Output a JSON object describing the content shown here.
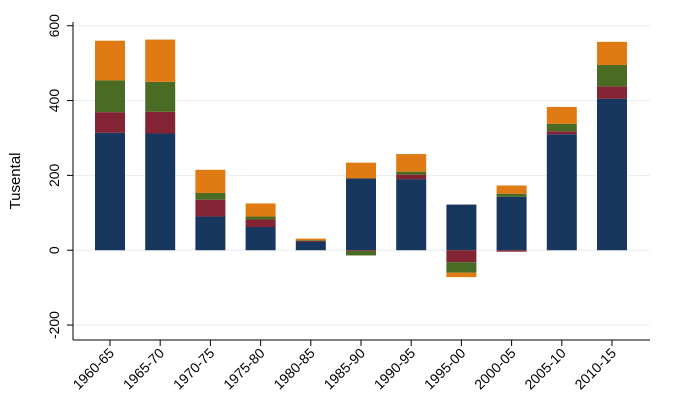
{
  "chart_data": {
    "type": "bar",
    "stacked": true,
    "title": "",
    "xlabel": "",
    "ylabel": "Tusental",
    "ylim": [
      -240,
      610
    ],
    "yticks": [
      -200,
      0,
      200,
      400,
      600
    ],
    "grid": true,
    "categories": [
      "1960-65",
      "1965-70",
      "1970-75",
      "1975-80",
      "1980-85",
      "1985-90",
      "1990-95",
      "1995-00",
      "2000-05",
      "2005-10",
      "2010-15"
    ],
    "colors": [
      "#17375e",
      "#822433",
      "#4a6b24",
      "#e07a12"
    ],
    "series": [
      {
        "values": [
          314,
          312,
          90,
          62,
          22,
          192,
          190,
          122,
          143,
          310,
          405
        ]
      },
      {
        "values": [
          55,
          58,
          45,
          20,
          3,
          -2,
          12,
          -32,
          -4,
          8,
          33
        ]
      },
      {
        "values": [
          85,
          80,
          18,
          8,
          2,
          -12,
          8,
          -28,
          8,
          20,
          57
        ]
      },
      {
        "values": [
          106,
          113,
          62,
          35,
          4,
          42,
          47,
          -12,
          22,
          45,
          62
        ]
      }
    ]
  }
}
